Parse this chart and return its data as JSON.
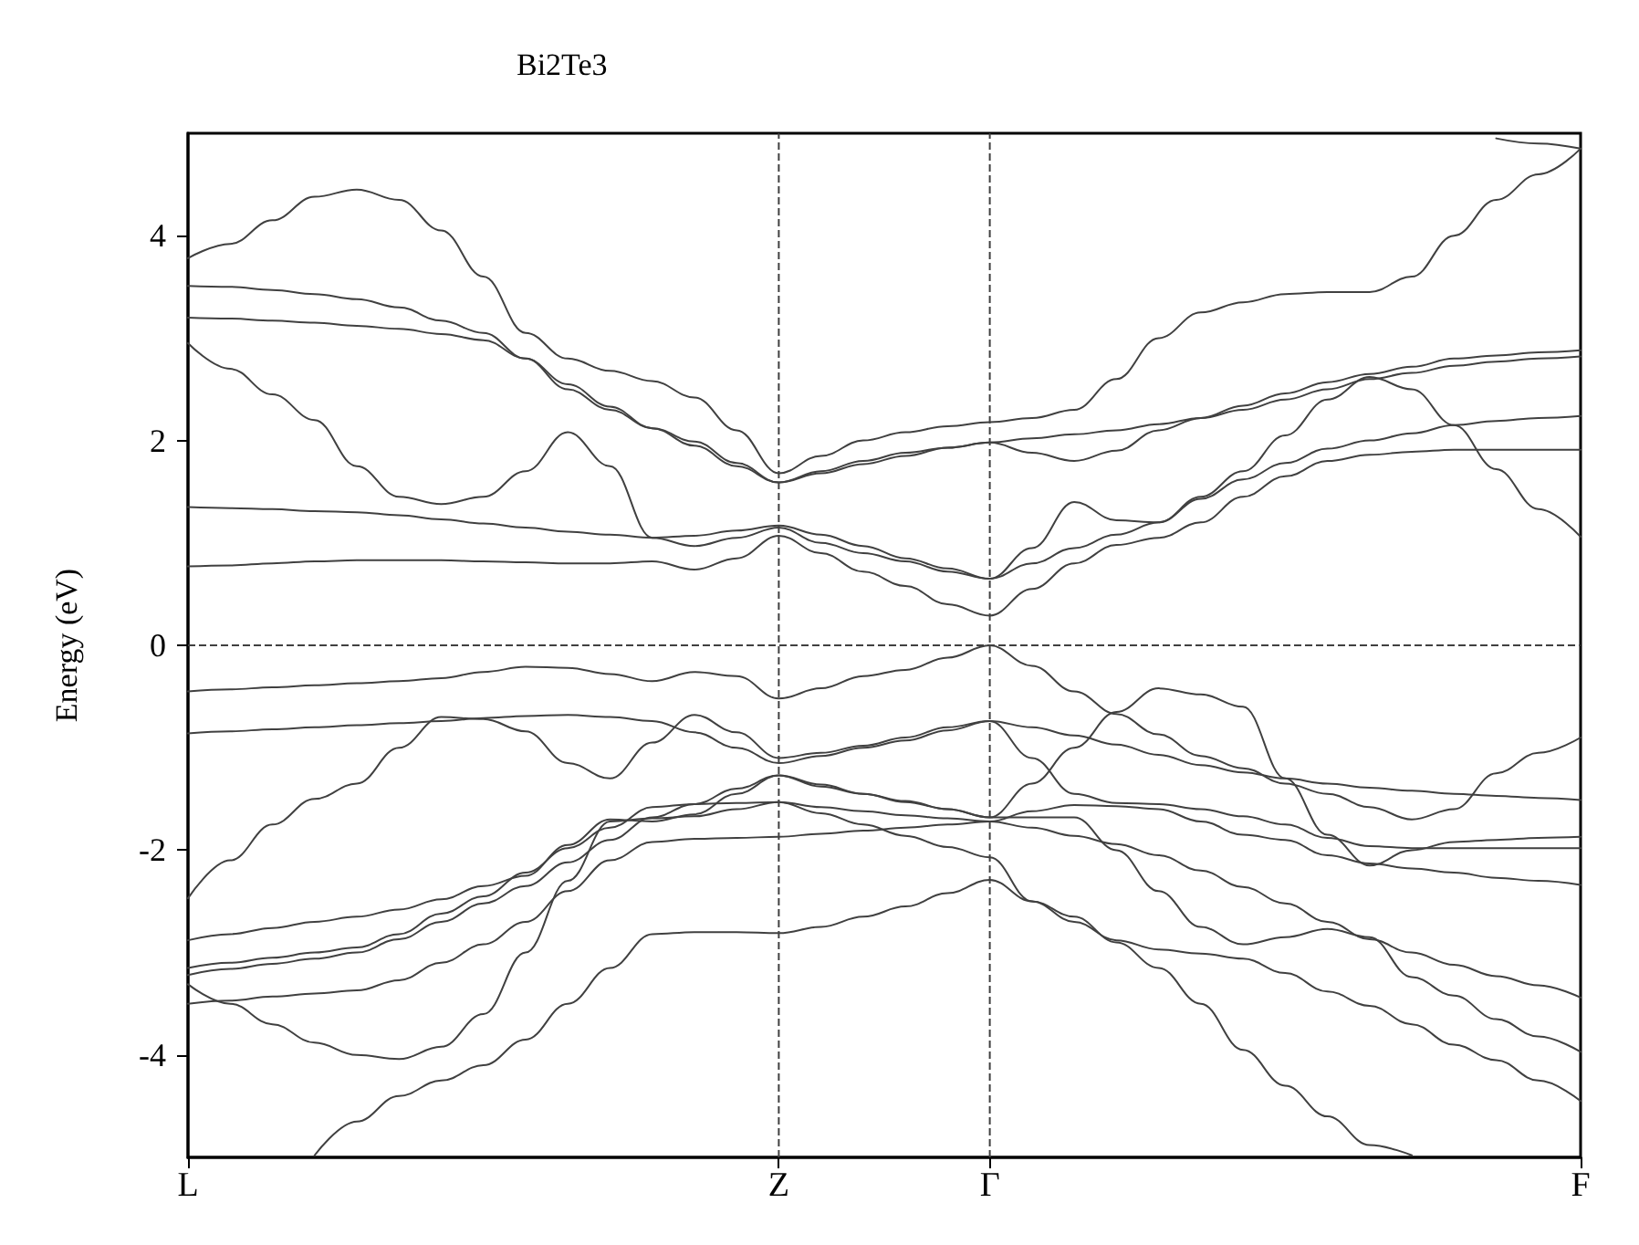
{
  "chart_data": {
    "type": "line",
    "title": "Bi2Te3",
    "ylabel": "Energy (eV)",
    "categories": [
      "L",
      null,
      null,
      null,
      null,
      null,
      null,
      null,
      null,
      null,
      null,
      null,
      null,
      null,
      "Z",
      null,
      null,
      null,
      null,
      "Γ",
      null,
      null,
      null,
      null,
      null,
      null,
      null,
      null,
      null,
      null,
      null,
      null,
      null,
      "F"
    ],
    "ylim": [
      -5,
      5
    ],
    "yticks": [
      -4,
      -2,
      0,
      2,
      4
    ],
    "grid": false,
    "marker": "none",
    "line_style": "solid",
    "ref_lines": [
      {
        "axis": "x",
        "value": "Z",
        "color": "#404040",
        "line_style": "dashed"
      },
      {
        "axis": "x",
        "value": "Γ",
        "color": "#404040",
        "line_style": "dashed"
      },
      {
        "axis": "y",
        "value": 0,
        "color": "#404040",
        "line_style": "dashed"
      }
    ],
    "series": [
      {
        "color": "#404040",
        "values": [
          0.77,
          0.78,
          0.8,
          0.82,
          0.83,
          0.83,
          0.83,
          0.82,
          0.81,
          0.8,
          0.8,
          0.82,
          0.74,
          0.85,
          1.07,
          0.9,
          0.72,
          0.58,
          0.4,
          0.29,
          0.55,
          0.8,
          0.98,
          1.05,
          1.2,
          1.45,
          1.65,
          1.8,
          1.86,
          1.89,
          1.91,
          1.91,
          1.91,
          1.91
        ]
      },
      {
        "color": "#404040",
        "values": [
          1.35,
          1.34,
          1.33,
          1.31,
          1.3,
          1.27,
          1.23,
          1.19,
          1.15,
          1.11,
          1.08,
          1.05,
          1.07,
          1.12,
          1.17,
          1.08,
          0.97,
          0.85,
          0.75,
          0.65,
          0.8,
          0.95,
          1.08,
          1.2,
          1.43,
          1.62,
          1.78,
          1.92,
          2.0,
          2.07,
          2.15,
          2.19,
          2.22,
          2.24
        ]
      },
      {
        "color": "#404040",
        "values": [
          2.95,
          2.7,
          2.45,
          2.2,
          1.75,
          1.45,
          1.38,
          1.45,
          1.7,
          2.08,
          1.75,
          1.05,
          0.97,
          1.05,
          1.15,
          1.0,
          0.9,
          0.82,
          0.72,
          0.65,
          0.95,
          1.4,
          1.22,
          1.2,
          1.45,
          1.7,
          2.05,
          2.4,
          2.62,
          2.5,
          2.15,
          1.72,
          1.33,
          1.06
        ]
      },
      {
        "color": "#404040",
        "values": [
          3.2,
          3.19,
          3.17,
          3.15,
          3.12,
          3.09,
          3.04,
          2.98,
          2.8,
          2.55,
          2.33,
          2.12,
          1.95,
          1.75,
          1.59,
          1.7,
          1.8,
          1.88,
          1.93,
          1.98,
          2.02,
          2.06,
          2.1,
          2.16,
          2.22,
          2.3,
          2.4,
          2.5,
          2.6,
          2.66,
          2.73,
          2.77,
          2.8,
          2.82
        ]
      },
      {
        "color": "#404040",
        "values": [
          3.51,
          3.5,
          3.47,
          3.43,
          3.38,
          3.3,
          3.17,
          3.05,
          2.8,
          2.5,
          2.3,
          2.12,
          1.99,
          1.78,
          1.59,
          1.68,
          1.77,
          1.85,
          1.93,
          1.98,
          1.88,
          1.8,
          1.9,
          2.1,
          2.22,
          2.34,
          2.46,
          2.57,
          2.65,
          2.72,
          2.8,
          2.83,
          2.86,
          2.88
        ]
      },
      {
        "color": "#404040",
        "values": [
          3.78,
          3.92,
          4.15,
          4.38,
          4.45,
          4.35,
          4.05,
          3.6,
          3.05,
          2.8,
          2.68,
          2.58,
          2.42,
          2.1,
          1.68,
          1.85,
          2.0,
          2.08,
          2.14,
          2.18,
          2.22,
          2.3,
          2.6,
          3.0,
          3.25,
          3.35,
          3.43,
          3.45,
          3.45,
          3.6,
          4.0,
          4.35,
          4.6,
          4.85
        ]
      },
      {
        "color": "#404040",
        "values": [
          null,
          null,
          null,
          null,
          null,
          null,
          null,
          null,
          null,
          null,
          null,
          null,
          null,
          null,
          null,
          null,
          null,
          null,
          null,
          null,
          null,
          null,
          null,
          null,
          null,
          null,
          null,
          null,
          null,
          null,
          null,
          4.95,
          4.9,
          4.85
        ]
      },
      {
        "color": "#404040",
        "values": [
          -0.45,
          -0.43,
          -0.41,
          -0.39,
          -0.37,
          -0.35,
          -0.32,
          -0.26,
          -0.21,
          -0.22,
          -0.28,
          -0.35,
          -0.26,
          -0.3,
          -0.52,
          -0.42,
          -0.3,
          -0.24,
          -0.12,
          0,
          -0.2,
          -0.45,
          -0.67,
          -0.87,
          -1.08,
          -1.2,
          -1.35,
          -1.45,
          -1.58,
          -1.7,
          -1.6,
          -1.25,
          -1.05,
          -0.9
        ]
      },
      {
        "color": "#404040",
        "values": [
          -0.86,
          -0.84,
          -0.82,
          -0.8,
          -0.78,
          -0.76,
          -0.74,
          -0.71,
          -0.69,
          -0.68,
          -0.7,
          -0.74,
          -0.85,
          -1.0,
          -1.15,
          -1.08,
          -1.0,
          -0.93,
          -0.83,
          -0.74,
          -0.8,
          -0.88,
          -0.97,
          -1.07,
          -1.17,
          -1.24,
          -1.3,
          -1.35,
          -1.39,
          -1.42,
          -1.45,
          -1.47,
          -1.49,
          -1.51
        ]
      },
      {
        "color": "#404040",
        "values": [
          -2.47,
          -2.1,
          -1.75,
          -1.5,
          -1.35,
          -1.0,
          -0.7,
          -0.72,
          -0.84,
          -1.15,
          -1.3,
          -0.95,
          -0.68,
          -0.85,
          -1.1,
          -1.05,
          -0.98,
          -0.9,
          -0.8,
          -0.74,
          -1.1,
          -1.45,
          -1.54,
          -1.55,
          -1.6,
          -1.67,
          -1.75,
          -1.88,
          -1.96,
          -1.98,
          -1.98,
          -1.98,
          -1.98,
          -1.98
        ]
      },
      {
        "color": "#404040",
        "values": [
          -2.88,
          -2.82,
          -2.76,
          -2.7,
          -2.65,
          -2.58,
          -2.48,
          -2.35,
          -2.25,
          -1.95,
          -1.7,
          -1.72,
          -1.65,
          -1.45,
          -1.27,
          -1.38,
          -1.45,
          -1.52,
          -1.6,
          -1.68,
          -1.35,
          -1.0,
          -0.65,
          -0.42,
          -0.48,
          -0.6,
          -1.3,
          -1.85,
          -2.15,
          -2.0,
          -1.92,
          -1.9,
          -1.88,
          -1.87
        ]
      },
      {
        "color": "#404040",
        "values": [
          -3.22,
          -3.16,
          -3.11,
          -3.06,
          -3.0,
          -2.87,
          -2.7,
          -2.52,
          -2.35,
          -2.12,
          -1.9,
          -1.68,
          -1.55,
          -1.4,
          -1.27,
          -1.36,
          -1.45,
          -1.53,
          -1.6,
          -1.68,
          -1.68,
          -1.68,
          -2.0,
          -2.4,
          -2.75,
          -2.92,
          -2.85,
          -2.77,
          -2.85,
          -3.24,
          -3.42,
          -3.65,
          -3.82,
          -3.97
        ]
      },
      {
        "color": "#404040",
        "values": [
          -3.31,
          -3.5,
          -3.7,
          -3.88,
          -4.0,
          -4.04,
          -3.92,
          -3.6,
          -3.0,
          -2.3,
          -1.72,
          -1.69,
          -1.67,
          -1.6,
          -1.53,
          -1.64,
          -1.75,
          -1.86,
          -1.97,
          -2.07,
          -2.5,
          -2.7,
          -2.88,
          -2.97,
          -3.01,
          -3.06,
          -3.2,
          -3.38,
          -3.52,
          -3.7,
          -3.9,
          -4.05,
          -4.25,
          -4.45
        ]
      },
      {
        "color": "#404040",
        "values": [
          -3.5,
          -3.47,
          -3.43,
          -3.4,
          -3.37,
          -3.27,
          -3.1,
          -2.92,
          -2.7,
          -2.4,
          -2.1,
          -1.92,
          -1.89,
          -1.88,
          -1.87,
          -1.84,
          -1.81,
          -1.78,
          -1.75,
          -1.72,
          -1.78,
          -1.86,
          -1.94,
          -2.05,
          -2.2,
          -2.36,
          -2.52,
          -2.7,
          -2.87,
          -3.0,
          -3.12,
          -3.23,
          -3.32,
          -3.44
        ]
      },
      {
        "color": "#404040",
        "values": [
          -3.15,
          -3.1,
          -3.05,
          -3.0,
          -2.95,
          -2.82,
          -2.62,
          -2.45,
          -2.22,
          -1.98,
          -1.78,
          -1.58,
          -1.55,
          -1.54,
          -1.53,
          -1.58,
          -1.62,
          -1.66,
          -1.69,
          -1.72,
          -1.62,
          -1.56,
          -1.57,
          -1.6,
          -1.72,
          -1.85,
          -1.9,
          -2.05,
          -2.13,
          -2.18,
          -2.22,
          -2.27,
          -2.3,
          -2.34
        ]
      },
      {
        "color": "#404040",
        "values": [
          null,
          null,
          null,
          -4.98,
          -4.65,
          -4.4,
          -4.25,
          -4.1,
          -3.85,
          -3.5,
          -3.15,
          -2.82,
          -2.8,
          -2.8,
          -2.81,
          -2.75,
          -2.65,
          -2.55,
          -2.42,
          -2.29,
          -2.5,
          -2.65,
          -2.9,
          -3.15,
          -3.5,
          -3.95,
          -4.3,
          -4.6,
          -4.88,
          -4.98,
          null,
          null,
          null,
          null
        ]
      }
    ]
  }
}
